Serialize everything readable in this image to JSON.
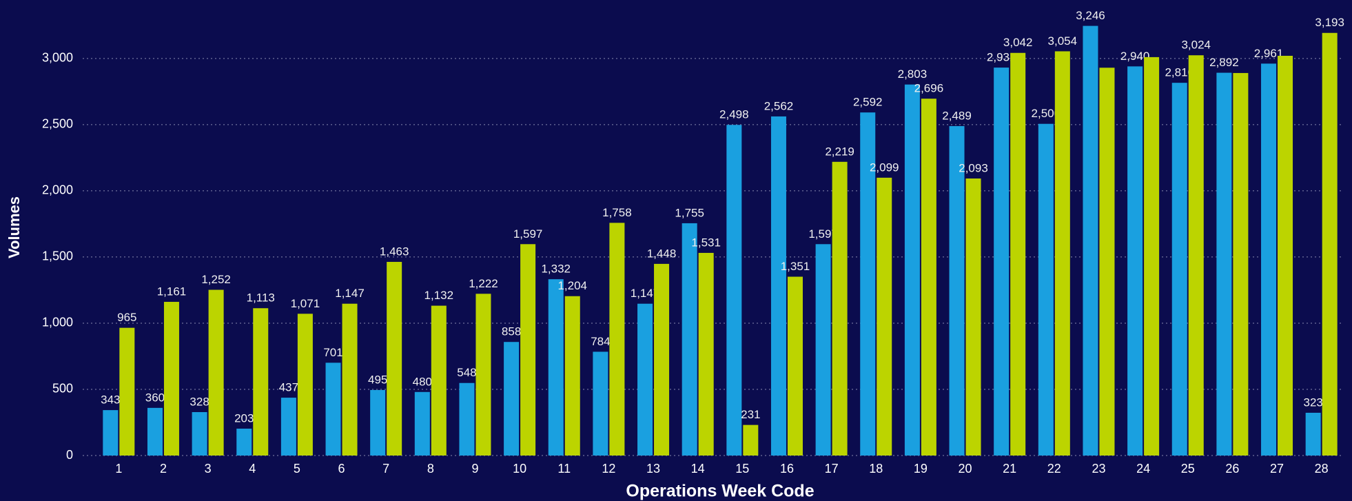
{
  "chart_data": {
    "type": "bar",
    "x_label": "Operations Week Code",
    "y_label": "Volumes",
    "categories": [
      "1",
      "2",
      "3",
      "4",
      "5",
      "6",
      "7",
      "8",
      "9",
      "10",
      "11",
      "12",
      "13",
      "14",
      "15",
      "16",
      "17",
      "18",
      "19",
      "20",
      "21",
      "22",
      "23",
      "24",
      "25",
      "26",
      "27",
      "28"
    ],
    "series": [
      {
        "color": "#1aa0e0",
        "values": [
          343,
          360,
          328,
          203,
          437,
          701,
          495,
          480,
          548,
          858,
          1332,
          784,
          1147,
          1755,
          2498,
          2562,
          1597,
          2592,
          2803,
          2489,
          2931,
          2506,
          3246,
          2940,
          2816,
          2892,
          2961,
          323
        ],
        "value_labels": [
          "343",
          "360",
          "328",
          "203",
          "437",
          "701",
          "495",
          "480",
          "548",
          "858",
          "1,332",
          "784",
          "1,147",
          "1,755",
          "2,498",
          "2,562",
          "1,597",
          "2,592",
          "2,803",
          "2,489",
          "2,931",
          "2,506",
          "3,246",
          "2,940",
          "2,816",
          "2,892",
          "2,961",
          "323"
        ]
      },
      {
        "color": "#bcd400",
        "values": [
          965,
          1161,
          1252,
          1113,
          1071,
          1147,
          1463,
          1132,
          1222,
          1597,
          1204,
          1758,
          1448,
          1531,
          231,
          1351,
          2219,
          2099,
          2696,
          2093,
          3042,
          3054,
          2930,
          3010,
          3024,
          2890,
          3020,
          3193
        ],
        "value_labels": [
          "965",
          "1,161",
          "1,252",
          "1,113",
          "1,071",
          "1,147",
          "1,463",
          "1,132",
          "1,222",
          "1,597",
          "1,204",
          "1,758",
          "1,448",
          "1,531",
          "231",
          "1,351",
          "2,219",
          "2,099",
          "2,696",
          "2,093",
          "3,042",
          "3,054",
          null,
          null,
          "3,024",
          null,
          null,
          "3,193"
        ]
      }
    ],
    "ylim": [
      0,
      3400
    ],
    "yticks": [
      0,
      500,
      {
        "value": 1000,
        "label": "1,000"
      },
      {
        "value": 1500,
        "label": "1,500"
      },
      {
        "value": 2000,
        "label": "2,000"
      },
      {
        "value": 2500,
        "label": "2,500"
      },
      {
        "value": 3000,
        "label": "3,000"
      }
    ],
    "grid": true
  }
}
